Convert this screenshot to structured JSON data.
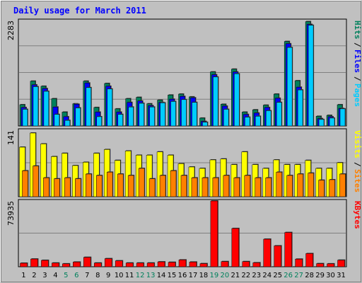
{
  "title": "Daily usage for March 2011",
  "chart_data": [
    {
      "type": "bar",
      "panel": "hits-files-pages",
      "ymax_label": "2283",
      "ymax": 2283,
      "legend": [
        {
          "name": "Pages",
          "color": "#00ccff"
        },
        {
          "name": "Files",
          "color": "#0000ff"
        },
        {
          "name": "Hits",
          "color": "#00805c"
        }
      ],
      "separators": [
        "/",
        "/"
      ],
      "categories": [
        "1",
        "2",
        "3",
        "4",
        "5",
        "6",
        "7",
        "8",
        "9",
        "10",
        "11",
        "12",
        "13",
        "14",
        "15",
        "16",
        "17",
        "18",
        "19",
        "20",
        "21",
        "22",
        "23",
        "24",
        "25",
        "26",
        "27",
        "28",
        "29",
        "30",
        "31"
      ],
      "series": [
        {
          "name": "Hits",
          "color": "#00805c",
          "values": [
            460,
            970,
            860,
            590,
            300,
            480,
            970,
            400,
            920,
            370,
            590,
            620,
            480,
            560,
            670,
            690,
            630,
            170,
            1170,
            470,
            1230,
            300,
            350,
            450,
            690,
            1830,
            980,
            2260,
            210,
            230,
            460
          ]
        },
        {
          "name": "Files",
          "color": "#0000ff",
          "values": [
            400,
            890,
            810,
            410,
            200,
            470,
            930,
            300,
            860,
            300,
            510,
            540,
            440,
            510,
            580,
            640,
            610,
            100,
            1110,
            430,
            1170,
            250,
            280,
            400,
            600,
            1780,
            840,
            2200,
            160,
            200,
            380
          ]
        },
        {
          "name": "Pages",
          "color": "#00ccff",
          "values": [
            360,
            850,
            750,
            250,
            120,
            390,
            830,
            200,
            800,
            250,
            410,
            490,
            410,
            500,
            530,
            570,
            510,
            80,
            1060,
            360,
            1130,
            190,
            210,
            330,
            510,
            1700,
            780,
            2180,
            140,
            170,
            370
          ]
        }
      ]
    },
    {
      "type": "bar",
      "panel": "sites-visits",
      "ymax_label": "141",
      "ymax": 141,
      "legend": [
        {
          "name": "Sites",
          "color": "#ff8000"
        },
        {
          "name": "Visits",
          "color": "#ffff00"
        }
      ],
      "separators": [
        "/"
      ],
      "categories": [
        "1",
        "2",
        "3",
        "4",
        "5",
        "6",
        "7",
        "8",
        "9",
        "10",
        "11",
        "12",
        "13",
        "14",
        "15",
        "16",
        "17",
        "18",
        "19",
        "20",
        "21",
        "22",
        "23",
        "24",
        "25",
        "26",
        "27",
        "28",
        "29",
        "30",
        "31"
      ],
      "series": [
        {
          "name": "Visits",
          "color": "#ffff00",
          "values": [
            105,
            135,
            112,
            85,
            92,
            66,
            73,
            92,
            100,
            77,
            97,
            88,
            88,
            95,
            88,
            70,
            63,
            60,
            78,
            80,
            68,
            95,
            68,
            60,
            78,
            68,
            68,
            77,
            60,
            60,
            72
          ]
        },
        {
          "name": "Sites",
          "color": "#ff8000",
          "values": [
            55,
            65,
            40,
            38,
            40,
            38,
            48,
            45,
            52,
            48,
            45,
            60,
            38,
            45,
            55,
            45,
            40,
            40,
            40,
            45,
            40,
            45,
            40,
            40,
            52,
            45,
            48,
            50,
            35,
            36,
            48
          ]
        }
      ]
    },
    {
      "type": "bar",
      "panel": "kbytes",
      "ymax_label": "73935",
      "ymax": 73935,
      "legend": [
        {
          "name": "KBytes",
          "color": "#ff0000"
        }
      ],
      "separators": [],
      "categories": [
        "1",
        "2",
        "3",
        "4",
        "5",
        "6",
        "7",
        "8",
        "9",
        "10",
        "11",
        "12",
        "13",
        "14",
        "15",
        "16",
        "17",
        "18",
        "19",
        "20",
        "21",
        "22",
        "23",
        "24",
        "25",
        "26",
        "27",
        "28",
        "29",
        "30",
        "31"
      ],
      "series": [
        {
          "name": "KBytes",
          "color": "#ff0000",
          "values": [
            4000,
            8700,
            7200,
            4200,
            3300,
            5300,
            10600,
            4200,
            9100,
            6700,
            4200,
            4200,
            4200,
            5500,
            5000,
            7700,
            5300,
            3500,
            73935,
            5800,
            43000,
            5800,
            4500,
            31000,
            23500,
            38500,
            8600,
            14800,
            3500,
            3300,
            7400
          ]
        }
      ]
    }
  ],
  "weekend_days": [
    "5",
    "6",
    "12",
    "13",
    "19",
    "20",
    "26",
    "27"
  ],
  "colors": {
    "background": "#c0c0c0",
    "title": "#0000ff",
    "weekday_label": "#000000",
    "weekend_label": "#00805c",
    "gridline": "#808080",
    "frame_light": "#ffffff",
    "frame_dark": "#808080"
  }
}
